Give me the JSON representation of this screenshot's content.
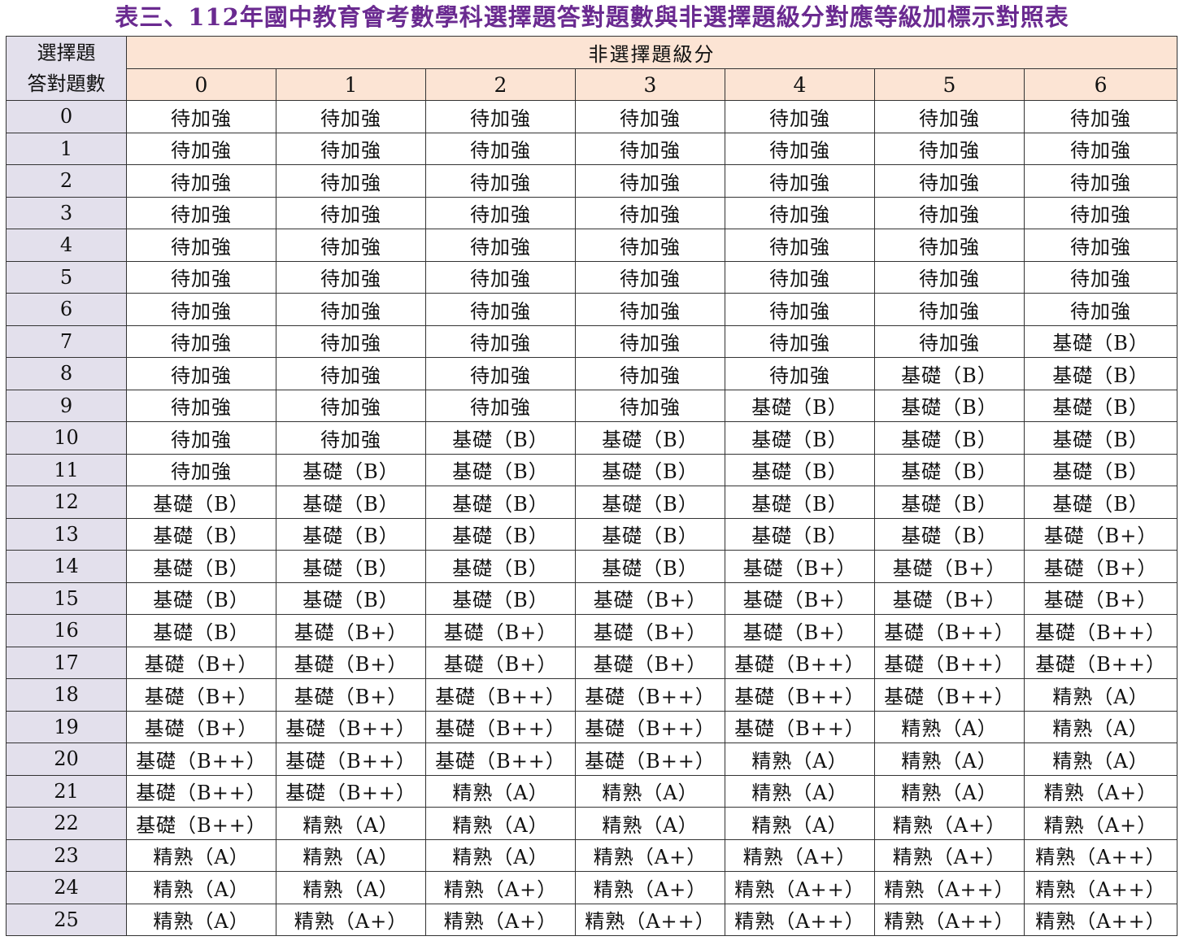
{
  "title": "表三、112年國中教育會考數學科選擇題答對題數與非選擇題級分對應等級加標示對照表",
  "corner_line1": "選擇題",
  "corner_line2": "答對題數",
  "column_group_header": "非選擇題級分",
  "columns": [
    "0",
    "1",
    "2",
    "3",
    "4",
    "5",
    "6"
  ],
  "rows": [
    {
      "label": "0",
      "cells": [
        "待加強",
        "待加強",
        "待加強",
        "待加強",
        "待加強",
        "待加強",
        "待加強"
      ]
    },
    {
      "label": "1",
      "cells": [
        "待加強",
        "待加強",
        "待加強",
        "待加強",
        "待加強",
        "待加強",
        "待加強"
      ]
    },
    {
      "label": "2",
      "cells": [
        "待加強",
        "待加強",
        "待加強",
        "待加強",
        "待加強",
        "待加強",
        "待加強"
      ]
    },
    {
      "label": "3",
      "cells": [
        "待加強",
        "待加強",
        "待加強",
        "待加強",
        "待加強",
        "待加強",
        "待加強"
      ]
    },
    {
      "label": "4",
      "cells": [
        "待加強",
        "待加強",
        "待加強",
        "待加強",
        "待加強",
        "待加強",
        "待加強"
      ]
    },
    {
      "label": "5",
      "cells": [
        "待加強",
        "待加強",
        "待加強",
        "待加強",
        "待加強",
        "待加強",
        "待加強"
      ]
    },
    {
      "label": "6",
      "cells": [
        "待加強",
        "待加強",
        "待加強",
        "待加強",
        "待加強",
        "待加強",
        "待加強"
      ]
    },
    {
      "label": "7",
      "cells": [
        "待加強",
        "待加強",
        "待加強",
        "待加強",
        "待加強",
        "待加強",
        "基礎（B）"
      ]
    },
    {
      "label": "8",
      "cells": [
        "待加強",
        "待加強",
        "待加強",
        "待加強",
        "待加強",
        "基礎（B）",
        "基礎（B）"
      ]
    },
    {
      "label": "9",
      "cells": [
        "待加強",
        "待加強",
        "待加強",
        "待加強",
        "基礎（B）",
        "基礎（B）",
        "基礎（B）"
      ]
    },
    {
      "label": "10",
      "cells": [
        "待加強",
        "待加強",
        "基礎（B）",
        "基礎（B）",
        "基礎（B）",
        "基礎（B）",
        "基礎（B）"
      ]
    },
    {
      "label": "11",
      "cells": [
        "待加強",
        "基礎（B）",
        "基礎（B）",
        "基礎（B）",
        "基礎（B）",
        "基礎（B）",
        "基礎（B）"
      ]
    },
    {
      "label": "12",
      "cells": [
        "基礎（B）",
        "基礎（B）",
        "基礎（B）",
        "基礎（B）",
        "基礎（B）",
        "基礎（B）",
        "基礎（B）"
      ]
    },
    {
      "label": "13",
      "cells": [
        "基礎（B）",
        "基礎（B）",
        "基礎（B）",
        "基礎（B）",
        "基礎（B）",
        "基礎（B）",
        "基礎（B+）"
      ]
    },
    {
      "label": "14",
      "cells": [
        "基礎（B）",
        "基礎（B）",
        "基礎（B）",
        "基礎（B）",
        "基礎（B+）",
        "基礎（B+）",
        "基礎（B+）"
      ]
    },
    {
      "label": "15",
      "cells": [
        "基礎（B）",
        "基礎（B）",
        "基礎（B）",
        "基礎（B+）",
        "基礎（B+）",
        "基礎（B+）",
        "基礎（B+）"
      ]
    },
    {
      "label": "16",
      "cells": [
        "基礎（B）",
        "基礎（B+）",
        "基礎（B+）",
        "基礎（B+）",
        "基礎（B+）",
        "基礎（B++）",
        "基礎（B++）"
      ]
    },
    {
      "label": "17",
      "cells": [
        "基礎（B+）",
        "基礎（B+）",
        "基礎（B+）",
        "基礎（B+）",
        "基礎（B++）",
        "基礎（B++）",
        "基礎（B++）"
      ]
    },
    {
      "label": "18",
      "cells": [
        "基礎（B+）",
        "基礎（B+）",
        "基礎（B++）",
        "基礎（B++）",
        "基礎（B++）",
        "基礎（B++）",
        "精熟（A）"
      ]
    },
    {
      "label": "19",
      "cells": [
        "基礎（B+）",
        "基礎（B++）",
        "基礎（B++）",
        "基礎（B++）",
        "基礎（B++）",
        "精熟（A）",
        "精熟（A）"
      ]
    },
    {
      "label": "20",
      "cells": [
        "基礎（B++）",
        "基礎（B++）",
        "基礎（B++）",
        "基礎（B++）",
        "精熟（A）",
        "精熟（A）",
        "精熟（A）"
      ]
    },
    {
      "label": "21",
      "cells": [
        "基礎（B++）",
        "基礎（B++）",
        "精熟（A）",
        "精熟（A）",
        "精熟（A）",
        "精熟（A）",
        "精熟（A+）"
      ]
    },
    {
      "label": "22",
      "cells": [
        "基礎（B++）",
        "精熟（A）",
        "精熟（A）",
        "精熟（A）",
        "精熟（A）",
        "精熟（A+）",
        "精熟（A+）"
      ]
    },
    {
      "label": "23",
      "cells": [
        "精熟（A）",
        "精熟（A）",
        "精熟（A）",
        "精熟（A+）",
        "精熟（A+）",
        "精熟（A+）",
        "精熟（A++）"
      ]
    },
    {
      "label": "24",
      "cells": [
        "精熟（A）",
        "精熟（A）",
        "精熟（A+）",
        "精熟（A+）",
        "精熟（A++）",
        "精熟（A++）",
        "精熟（A++）"
      ]
    },
    {
      "label": "25",
      "cells": [
        "精熟（A）",
        "精熟（A+）",
        "精熟（A+）",
        "精熟（A++）",
        "精熟（A++）",
        "精熟（A++）",
        "精熟（A++）"
      ]
    }
  ]
}
